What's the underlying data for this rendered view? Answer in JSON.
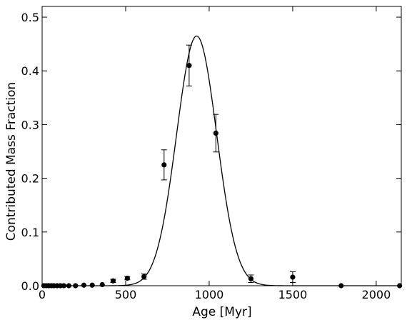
{
  "chart_data": {
    "type": "scatter",
    "title": "",
    "xlabel": "Age [Myr]",
    "ylabel": "Contributed Mass Fraction",
    "xlim": [
      0,
      2150
    ],
    "ylim": [
      0,
      0.52
    ],
    "x_ticks": [
      0,
      500,
      1000,
      1500,
      2000
    ],
    "x_tick_labels": [
      "0",
      "500",
      "1000",
      "1500",
      "2000"
    ],
    "y_ticks": [
      0.0,
      0.1,
      0.2,
      0.3,
      0.4,
      0.5
    ],
    "y_tick_labels": [
      "0.0",
      "0.1",
      "0.2",
      "0.3",
      "0.4",
      "0.5"
    ],
    "grid": false,
    "legend": "none",
    "series": [
      {
        "type": "scatter",
        "marker_color": "#000000",
        "points": [
          {
            "x": 10,
            "y": 0.0
          },
          {
            "x": 25,
            "y": 0.0
          },
          {
            "x": 40,
            "y": 0.0
          },
          {
            "x": 55,
            "y": 0.0
          },
          {
            "x": 70,
            "y": 0.0
          },
          {
            "x": 90,
            "y": 0.0
          },
          {
            "x": 110,
            "y": 0.0
          },
          {
            "x": 130,
            "y": 0.0
          },
          {
            "x": 160,
            "y": 0.0
          },
          {
            "x": 200,
            "y": 0.0
          },
          {
            "x": 250,
            "y": 0.001
          },
          {
            "x": 300,
            "y": 0.001
          },
          {
            "x": 360,
            "y": 0.002
          },
          {
            "x": 425,
            "y": 0.009,
            "err": 0.003
          },
          {
            "x": 510,
            "y": 0.014,
            "err": 0.003
          },
          {
            "x": 610,
            "y": 0.017,
            "err": 0.005
          },
          {
            "x": 730,
            "y": 0.225,
            "err": 0.028
          },
          {
            "x": 880,
            "y": 0.41,
            "err": 0.038
          },
          {
            "x": 1040,
            "y": 0.284,
            "err": 0.035
          },
          {
            "x": 1250,
            "y": 0.013,
            "err": 0.007
          },
          {
            "x": 1500,
            "y": 0.016,
            "err": 0.01
          },
          {
            "x": 1790,
            "y": 0.0
          },
          {
            "x": 2140,
            "y": 0.0
          }
        ]
      },
      {
        "type": "line",
        "model": "gaussian",
        "line_color": "#000000",
        "amplitude": 0.465,
        "mean": 925,
        "sigma": 120,
        "x_range": [
          0,
          2150
        ]
      }
    ]
  }
}
